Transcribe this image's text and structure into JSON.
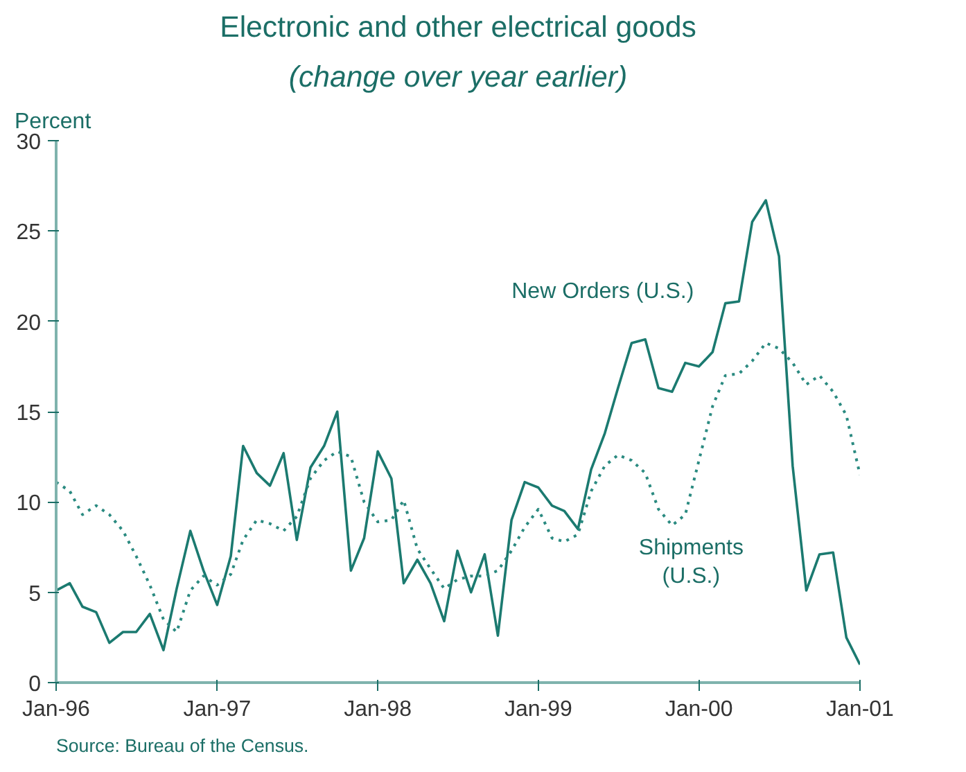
{
  "chart_data": {
    "type": "line",
    "title": "Electronic and other electrical goods",
    "subtitle": "(change over year earlier)",
    "ylabel": "Percent",
    "x": [
      "1996-01",
      "1996-02",
      "1996-03",
      "1996-04",
      "1996-05",
      "1996-06",
      "1996-07",
      "1996-08",
      "1996-09",
      "1996-10",
      "1996-11",
      "1996-12",
      "1997-01",
      "1997-02",
      "1997-03",
      "1997-04",
      "1997-05",
      "1997-06",
      "1997-07",
      "1997-08",
      "1997-09",
      "1997-10",
      "1997-11",
      "1997-12",
      "1998-01",
      "1998-02",
      "1998-03",
      "1998-04",
      "1998-05",
      "1998-06",
      "1998-07",
      "1998-08",
      "1998-09",
      "1998-10",
      "1998-11",
      "1998-12",
      "1999-01",
      "1999-02",
      "1999-03",
      "1999-04",
      "1999-05",
      "1999-06",
      "1999-07",
      "1999-08",
      "1999-09",
      "1999-10",
      "1999-11",
      "1999-12",
      "2000-01",
      "2000-02",
      "2000-03",
      "2000-04",
      "2000-05",
      "2000-06",
      "2000-07",
      "2000-08",
      "2000-09",
      "2000-10",
      "2000-11",
      "2000-12",
      "2001-01"
    ],
    "series": [
      {
        "name": "New Orders (U.S.)",
        "color": "#1b7a70",
        "line_style": "solid",
        "values": [
          5.1,
          5.5,
          4.2,
          3.9,
          2.2,
          2.8,
          2.8,
          3.8,
          1.8,
          5.2,
          8.4,
          6.2,
          4.3,
          7.0,
          13.1,
          11.6,
          10.9,
          12.7,
          7.9,
          11.9,
          13.1,
          15.0,
          6.2,
          8.0,
          12.8,
          11.3,
          5.5,
          6.8,
          5.5,
          3.4,
          7.3,
          5.0,
          7.1,
          2.6,
          9.0,
          11.1,
          10.8,
          9.8,
          9.5,
          8.5,
          11.8,
          13.8,
          16.3,
          18.8,
          19.0,
          16.3,
          16.1,
          17.7,
          17.5,
          18.3,
          21.0,
          21.1,
          25.5,
          26.7,
          23.6,
          12.0,
          5.1,
          7.1,
          7.2,
          2.5,
          1.0
        ]
      },
      {
        "name": "Shipments\n(U.S.)",
        "color": "#2a8a80",
        "line_style": "dotted",
        "values": [
          11.1,
          10.6,
          9.3,
          9.8,
          9.3,
          8.4,
          7.0,
          5.4,
          3.5,
          2.8,
          5.1,
          5.9,
          5.4,
          6.0,
          7.9,
          9.0,
          8.8,
          8.4,
          9.2,
          11.3,
          12.3,
          12.8,
          12.5,
          10.0,
          8.9,
          9.0,
          10.1,
          7.4,
          6.3,
          5.2,
          5.7,
          5.9,
          5.9,
          6.2,
          7.3,
          8.6,
          9.6,
          8.0,
          7.8,
          8.2,
          10.6,
          12.0,
          12.6,
          12.3,
          11.6,
          9.6,
          8.7,
          9.3,
          12.3,
          15.3,
          17.0,
          17.1,
          17.8,
          18.8,
          18.5,
          17.7,
          16.5,
          17.0,
          16.1,
          14.8,
          11.5
        ]
      }
    ],
    "xlim": [
      "1996-01",
      "2001-01"
    ],
    "xticks": [
      {
        "value": "1996-01",
        "label": "Jan-96"
      },
      {
        "value": "1997-01",
        "label": "Jan-97"
      },
      {
        "value": "1998-01",
        "label": "Jan-98"
      },
      {
        "value": "1999-01",
        "label": "Jan-99"
      },
      {
        "value": "2000-01",
        "label": "Jan-00"
      },
      {
        "value": "2001-01",
        "label": "Jan-01"
      }
    ],
    "ylim": [
      0,
      30
    ],
    "yticks": [
      0,
      5,
      10,
      15,
      20,
      25,
      30
    ],
    "grid": false,
    "legend": false,
    "annotations": [
      "Source: Bureau of the Census."
    ]
  }
}
